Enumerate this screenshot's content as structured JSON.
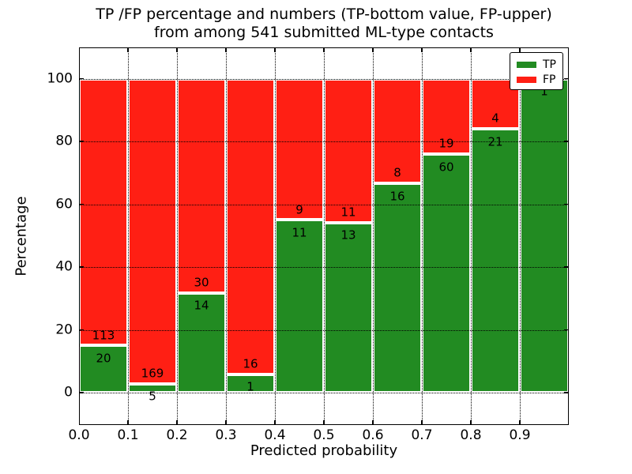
{
  "chart_data": {
    "type": "bar",
    "subtype": "stacked-percentage",
    "title_lines": [
      "TP /FP percentage and numbers (TP-bottom value, FP-upper)",
      "from among 541 submitted ML-type contacts"
    ],
    "total_contacts": 541,
    "xlabel": "Predicted probability",
    "ylabel": "Percentage",
    "xtick_labels": [
      "0.0",
      "0.1",
      "0.2",
      "0.3",
      "0.4",
      "0.5",
      "0.6",
      "0.7",
      "0.8",
      "0.9"
    ],
    "yticks": [
      0,
      20,
      40,
      60,
      80,
      100
    ],
    "xlim": [
      0.0,
      1.0
    ],
    "ylim": [
      -10.3,
      110
    ],
    "grid": "dotted",
    "bin_width": 0.1,
    "series": [
      {
        "name": "TP",
        "color": "#228b22",
        "counts": [
          20,
          5,
          14,
          1,
          11,
          13,
          16,
          60,
          21,
          1
        ]
      },
      {
        "name": "FP",
        "color": "#ff1f14",
        "counts": [
          113,
          169,
          30,
          16,
          9,
          11,
          8,
          19,
          4,
          0
        ]
      }
    ],
    "tp_percent": [
      15.0,
      2.9,
      31.8,
      5.9,
      55.0,
      54.2,
      66.7,
      75.9,
      84.0,
      100.0
    ],
    "bar_edge_color": "#ffffff",
    "legend": {
      "position": "upper-right",
      "entries": [
        {
          "label": "TP",
          "color": "#228b22"
        },
        {
          "label": "FP",
          "color": "#ff1f14"
        }
      ]
    },
    "annotation_note": "TP count printed just below each green segment top, FP count just above it"
  }
}
